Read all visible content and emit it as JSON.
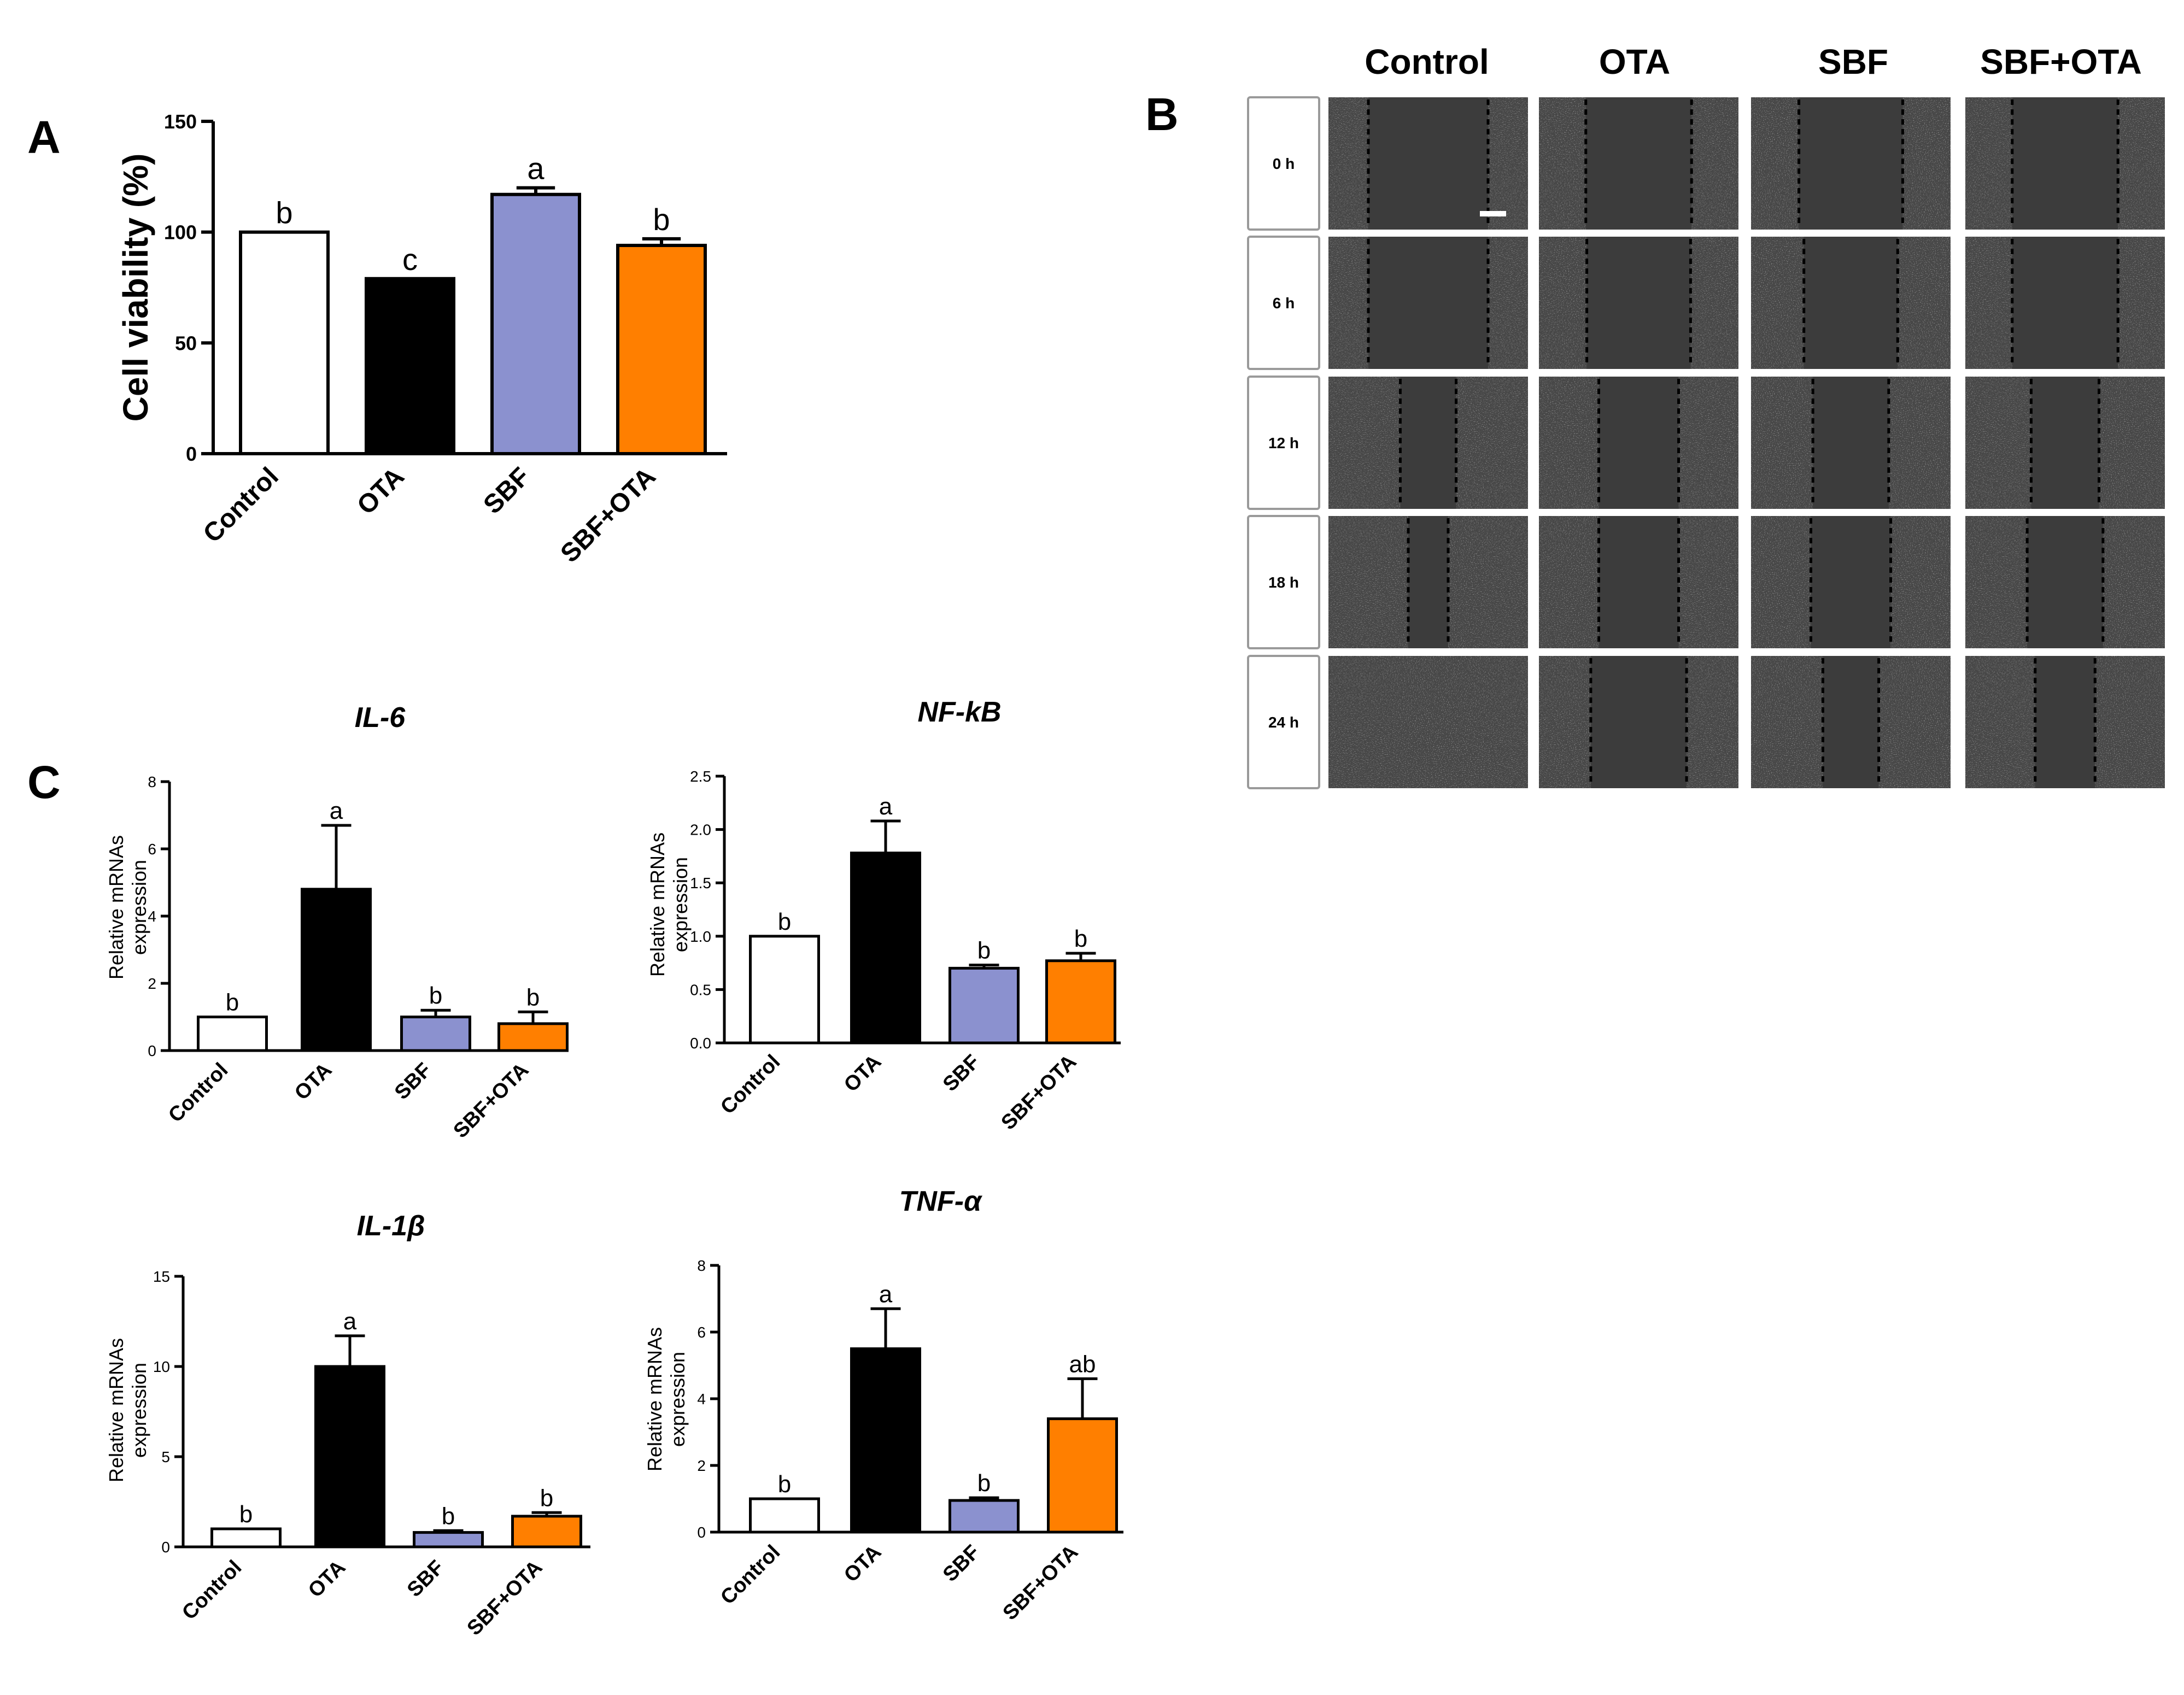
{
  "colors": {
    "Control": "#ffffff",
    "OTA": "#000000",
    "SBF": "#8b91cf",
    "SBF+OTA": "#ff7f00"
  },
  "panel_b": {
    "letter": "B",
    "columns": [
      "Control",
      "OTA",
      "SBF",
      "SBF+OTA"
    ],
    "rows": [
      "0 h",
      "6 h",
      "12 h",
      "18 h",
      "24 h"
    ]
  },
  "chart_data": [
    {
      "id": "A",
      "letter": "A",
      "type": "bar",
      "title": "",
      "categories": [
        "Control",
        "OTA",
        "SBF",
        "SBF+OTA"
      ],
      "values": [
        100,
        79,
        117,
        94
      ],
      "errors": [
        0,
        0,
        3,
        3
      ],
      "significance": [
        "b",
        "c",
        "a",
        "b"
      ],
      "ylabel": "Cell viability (%)",
      "ylim": [
        0,
        150
      ],
      "yticks": [
        0,
        50,
        100,
        150
      ],
      "ytick_labels": [
        "0",
        "50",
        "100",
        "150"
      ]
    },
    {
      "id": "C-IL6",
      "letter": "C",
      "type": "bar",
      "title": "IL-6",
      "categories": [
        "Control",
        "OTA",
        "SBF",
        "SBF+OTA"
      ],
      "values": [
        1.0,
        4.8,
        1.0,
        0.8
      ],
      "errors": [
        0,
        1.9,
        0.2,
        0.35
      ],
      "significance": [
        "b",
        "a",
        "b",
        "b"
      ],
      "ylabel": "Relative mRNAs expression",
      "ylim": [
        0,
        8
      ],
      "yticks": [
        0,
        2,
        4,
        6,
        8
      ],
      "ytick_labels": [
        "0",
        "2",
        "4",
        "6",
        "8"
      ]
    },
    {
      "id": "C-NFkB",
      "type": "bar",
      "title": "NF-kB",
      "categories": [
        "Control",
        "OTA",
        "SBF",
        "SBF+OTA"
      ],
      "values": [
        1.0,
        1.78,
        0.7,
        0.77
      ],
      "errors": [
        0,
        0.3,
        0.03,
        0.07
      ],
      "significance": [
        "b",
        "a",
        "b",
        "b"
      ],
      "ylabel": "Relative mRNAs expression",
      "ylim": [
        0,
        2.5
      ],
      "yticks": [
        0,
        0.5,
        1.0,
        1.5,
        2.0,
        2.5
      ],
      "ytick_labels": [
        "0.0",
        "0.5",
        "1.0",
        "1.5",
        "2.0",
        "2.5"
      ]
    },
    {
      "id": "C-IL1b",
      "type": "bar",
      "title": "IL-1β",
      "categories": [
        "Control",
        "OTA",
        "SBF",
        "SBF+OTA"
      ],
      "values": [
        1.0,
        10.0,
        0.8,
        1.7
      ],
      "errors": [
        0,
        1.7,
        0.1,
        0.2
      ],
      "significance": [
        "b",
        "a",
        "b",
        "b"
      ],
      "ylabel": "Relative mRNAs expression",
      "ylim": [
        0,
        15
      ],
      "yticks": [
        0,
        5,
        10,
        15
      ],
      "ytick_labels": [
        "0",
        "5",
        "10",
        "15"
      ]
    },
    {
      "id": "C-TNFa",
      "type": "bar",
      "title": "TNF-α",
      "categories": [
        "Control",
        "OTA",
        "SBF",
        "SBF+OTA"
      ],
      "values": [
        1.0,
        5.5,
        0.95,
        3.4
      ],
      "errors": [
        0,
        1.2,
        0.08,
        1.2
      ],
      "significance": [
        "b",
        "a",
        "b",
        "ab"
      ],
      "ylabel": "Relative mRNAs expression",
      "ylim": [
        0,
        8
      ],
      "yticks": [
        0,
        2,
        4,
        6,
        8
      ],
      "ytick_labels": [
        "0",
        "2",
        "4",
        "6",
        "8"
      ]
    }
  ]
}
